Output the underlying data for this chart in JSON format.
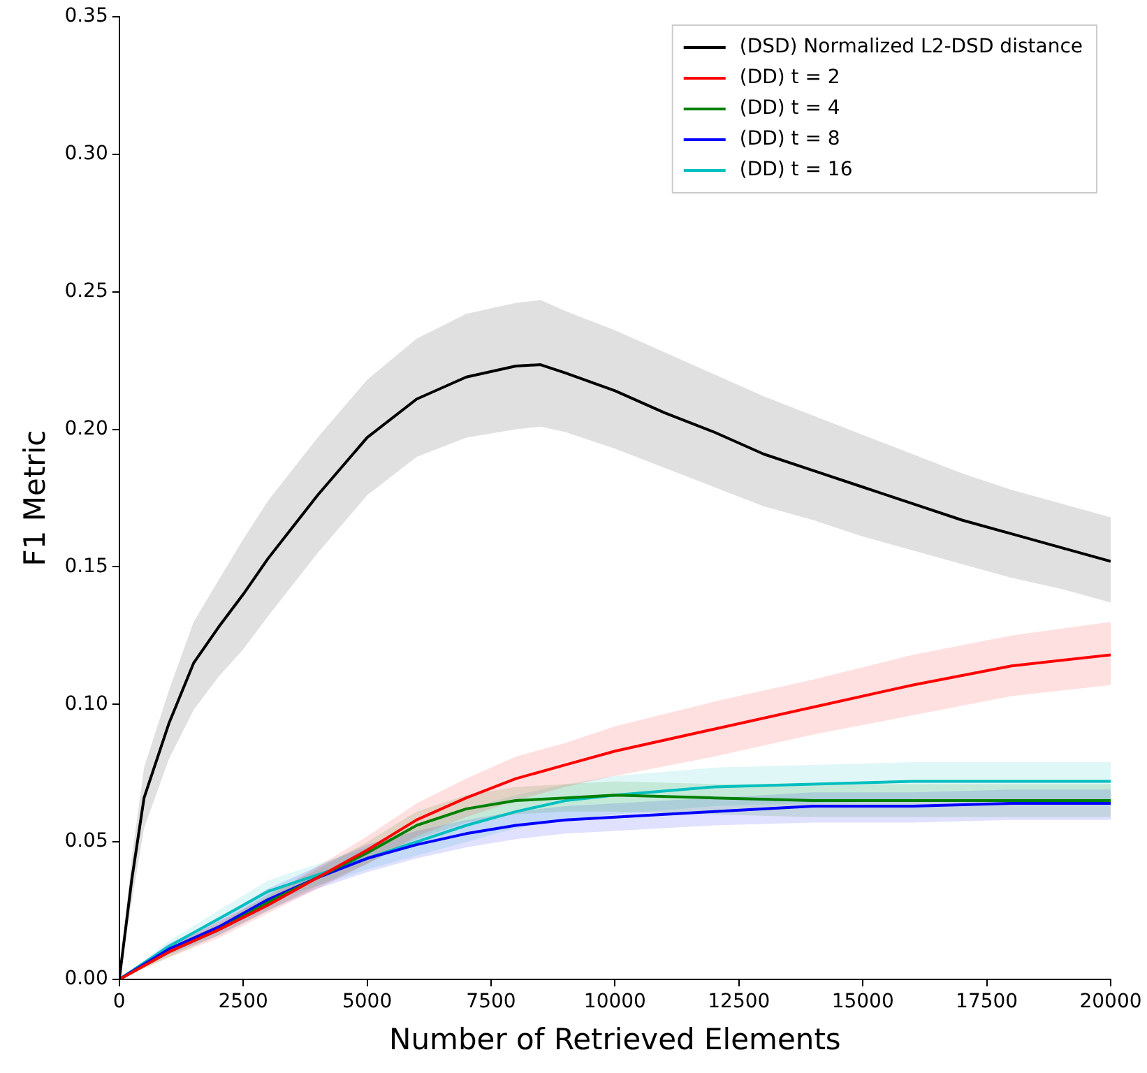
{
  "chart_data": {
    "type": "line",
    "xlabel": "Number of Retrieved Elements",
    "ylabel": "F1 Metric",
    "x": [
      0,
      1000,
      2000,
      3000,
      4000,
      5000,
      6000,
      7000,
      8000,
      9000,
      10000,
      12000,
      14000,
      16000,
      18000,
      20000
    ],
    "xlim": [
      0,
      20000
    ],
    "xticks": [
      0,
      2500,
      5000,
      7500,
      10000,
      12500,
      15000,
      17500,
      20000
    ],
    "ylim": [
      0,
      0.35
    ],
    "yticks": [
      {
        "value": 0,
        "label": "0.00"
      },
      {
        "value": 0.05,
        "label": "0.05"
      },
      {
        "value": 0.1,
        "label": "0.10"
      },
      {
        "value": 0.15,
        "label": "0.15"
      },
      {
        "value": 0.2,
        "label": "0.20"
      },
      {
        "value": 0.25,
        "label": "0.25"
      },
      {
        "value": 0.3,
        "label": "0.30"
      },
      {
        "value": 0.35,
        "label": "0.35"
      }
    ],
    "grid": false,
    "legend": "top right",
    "marker": "none",
    "line_style": "solid",
    "series": [
      {
        "name": "(DSD) Normalized L2-DSD distance",
        "color": "#000000",
        "x": [
          0,
          250,
          500,
          1000,
          1500,
          2000,
          2500,
          3000,
          4000,
          5000,
          6000,
          7000,
          8000,
          8500,
          9000,
          10000,
          11000,
          12000,
          13000,
          14000,
          15000,
          16000,
          17000,
          18000,
          19000,
          20000
        ],
        "values": [
          0,
          0.036,
          0.066,
          0.093,
          0.115,
          0.128,
          0.14,
          0.153,
          0.176,
          0.197,
          0.211,
          0.219,
          0.223,
          0.2235,
          0.2205,
          0.214,
          0.206,
          0.199,
          0.191,
          0.185,
          0.179,
          0.173,
          0.167,
          0.162,
          0.157,
          0.152
        ],
        "lower": [
          0,
          0.028,
          0.055,
          0.08,
          0.098,
          0.11,
          0.12,
          0.132,
          0.155,
          0.176,
          0.19,
          0.197,
          0.2,
          0.201,
          0.199,
          0.193,
          0.186,
          0.179,
          0.172,
          0.167,
          0.161,
          0.156,
          0.151,
          0.146,
          0.142,
          0.137
        ],
        "upper": [
          0,
          0.044,
          0.077,
          0.105,
          0.13,
          0.145,
          0.16,
          0.174,
          0.197,
          0.218,
          0.233,
          0.242,
          0.246,
          0.247,
          0.243,
          0.236,
          0.228,
          0.22,
          0.212,
          0.205,
          0.198,
          0.191,
          0.184,
          0.178,
          0.173,
          0.168
        ]
      },
      {
        "name": "(DD) t = 2",
        "color": "#ff0000",
        "values": [
          0,
          0.01,
          0.018,
          0.027,
          0.037,
          0.047,
          0.058,
          0.066,
          0.073,
          0.078,
          0.083,
          0.091,
          0.099,
          0.107,
          0.114,
          0.118
        ],
        "lower": [
          0,
          0.008,
          0.015,
          0.024,
          0.033,
          0.042,
          0.052,
          0.059,
          0.065,
          0.07,
          0.074,
          0.081,
          0.089,
          0.096,
          0.103,
          0.107
        ],
        "upper": [
          0,
          0.012,
          0.021,
          0.03,
          0.041,
          0.052,
          0.064,
          0.073,
          0.081,
          0.086,
          0.092,
          0.101,
          0.109,
          0.118,
          0.125,
          0.13
        ]
      },
      {
        "name": "(DD) t = 4",
        "color": "#008000",
        "values": [
          0,
          0.01,
          0.018,
          0.028,
          0.037,
          0.046,
          0.056,
          0.062,
          0.065,
          0.066,
          0.067,
          0.066,
          0.065,
          0.065,
          0.065,
          0.065
        ],
        "lower": [
          0,
          0.008,
          0.016,
          0.025,
          0.034,
          0.042,
          0.051,
          0.057,
          0.06,
          0.061,
          0.061,
          0.06,
          0.059,
          0.059,
          0.059,
          0.059
        ],
        "upper": [
          0,
          0.012,
          0.02,
          0.031,
          0.04,
          0.05,
          0.061,
          0.067,
          0.07,
          0.071,
          0.072,
          0.071,
          0.071,
          0.071,
          0.071,
          0.071
        ]
      },
      {
        "name": "(DD) t = 8",
        "color": "#0000ff",
        "values": [
          0,
          0.011,
          0.019,
          0.029,
          0.037,
          0.044,
          0.049,
          0.053,
          0.056,
          0.058,
          0.059,
          0.061,
          0.063,
          0.063,
          0.064,
          0.064
        ],
        "lower": [
          0,
          0.009,
          0.016,
          0.025,
          0.033,
          0.039,
          0.044,
          0.048,
          0.051,
          0.053,
          0.054,
          0.056,
          0.057,
          0.057,
          0.058,
          0.058
        ],
        "upper": [
          0,
          0.013,
          0.022,
          0.033,
          0.041,
          0.049,
          0.054,
          0.058,
          0.061,
          0.063,
          0.064,
          0.066,
          0.068,
          0.068,
          0.069,
          0.069
        ]
      },
      {
        "name": "(DD) t = 16",
        "color": "#00bfbf",
        "values": [
          0,
          0.012,
          0.022,
          0.032,
          0.038,
          0.044,
          0.05,
          0.056,
          0.061,
          0.065,
          0.067,
          0.07,
          0.071,
          0.072,
          0.072,
          0.072
        ],
        "lower": [
          0,
          0.01,
          0.019,
          0.028,
          0.034,
          0.04,
          0.045,
          0.05,
          0.055,
          0.058,
          0.06,
          0.063,
          0.064,
          0.065,
          0.065,
          0.065
        ],
        "upper": [
          0,
          0.014,
          0.025,
          0.036,
          0.042,
          0.048,
          0.055,
          0.062,
          0.067,
          0.071,
          0.074,
          0.077,
          0.078,
          0.079,
          0.079,
          0.079
        ]
      }
    ]
  }
}
